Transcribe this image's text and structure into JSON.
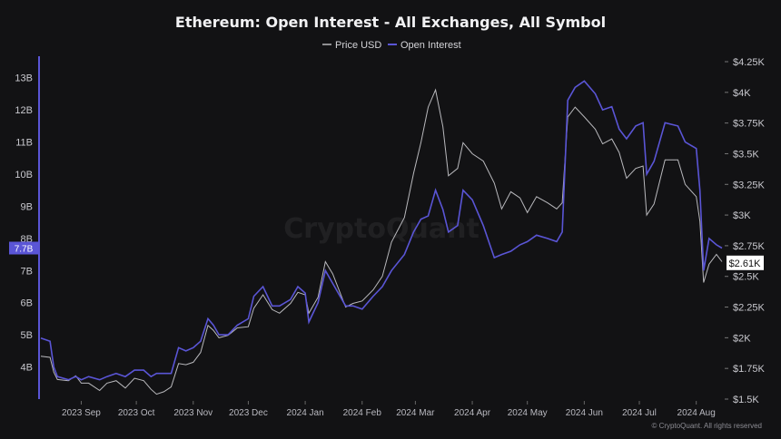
{
  "chart_data": {
    "type": "line",
    "title": "Ethereum: Open Interest - All Exchanges, All Symbol",
    "credit": "© CryptoQuant. All rights reserved",
    "watermark": "CryptoQuant",
    "legend_position": "top-center",
    "grid": false,
    "x_ticks": [
      {
        "label": "2023 Sep",
        "date": "2023-09-01"
      },
      {
        "label": "2023 Oct",
        "date": "2023-10-01"
      },
      {
        "label": "2023 Nov",
        "date": "2023-11-01"
      },
      {
        "label": "2023 Dec",
        "date": "2023-12-01"
      },
      {
        "label": "2024 Jan",
        "date": "2024-01-01"
      },
      {
        "label": "2024 Feb",
        "date": "2024-02-01"
      },
      {
        "label": "2024 Mar",
        "date": "2024-03-01"
      },
      {
        "label": "2024 Apr",
        "date": "2024-04-01"
      },
      {
        "label": "2024 May",
        "date": "2024-05-01"
      },
      {
        "label": "2024 Jun",
        "date": "2024-06-01"
      },
      {
        "label": "2024 Jul",
        "date": "2024-07-01"
      },
      {
        "label": "2024 Aug",
        "date": "2024-08-01"
      }
    ],
    "x_range": [
      "2023-08-10",
      "2024-08-16"
    ],
    "left_axis": {
      "ylim": [
        3.0,
        13.5
      ],
      "ticks": [
        {
          "value": 4,
          "label": "4B"
        },
        {
          "value": 5,
          "label": "5B"
        },
        {
          "value": 6,
          "label": "6B"
        },
        {
          "value": 7,
          "label": "7B"
        },
        {
          "value": 8,
          "label": "8B"
        },
        {
          "value": 9,
          "label": "9B"
        },
        {
          "value": 10,
          "label": "10B"
        },
        {
          "value": 11,
          "label": "11B"
        },
        {
          "value": 12,
          "label": "12B"
        },
        {
          "value": 13,
          "label": "13B"
        }
      ],
      "current_label": "7.7B",
      "current_value": 7.7,
      "badge_color": "#5a55d6"
    },
    "right_axis": {
      "ylim": [
        1500,
        4250
      ],
      "ticks": [
        {
          "value": 1500,
          "label": "$1.5K"
        },
        {
          "value": 1750,
          "label": "$1.75K"
        },
        {
          "value": 2000,
          "label": "$2K"
        },
        {
          "value": 2250,
          "label": "$2.25K"
        },
        {
          "value": 2500,
          "label": "$2.5K"
        },
        {
          "value": 2750,
          "label": "$2.75K"
        },
        {
          "value": 3000,
          "label": "$3K"
        },
        {
          "value": 3250,
          "label": "$3.25K"
        },
        {
          "value": 3500,
          "label": "$3.5K"
        },
        {
          "value": 3750,
          "label": "$3.75K"
        },
        {
          "value": 4000,
          "label": "$4K"
        },
        {
          "value": 4250,
          "label": "$4.25K"
        }
      ],
      "current_label": "$2.61K",
      "current_value": 2610
    },
    "series": [
      {
        "name": "Price USD",
        "axis": "right",
        "color": "#b9b9bd",
        "x": [
          "2023-08-10",
          "2023-08-15",
          "2023-08-17",
          "2023-08-19",
          "2023-08-25",
          "2023-08-29",
          "2023-09-01",
          "2023-09-05",
          "2023-09-11",
          "2023-09-15",
          "2023-09-20",
          "2023-09-25",
          "2023-09-30",
          "2023-10-05",
          "2023-10-09",
          "2023-10-12",
          "2023-10-16",
          "2023-10-20",
          "2023-10-24",
          "2023-10-28",
          "2023-11-01",
          "2023-11-05",
          "2023-11-09",
          "2023-11-12",
          "2023-11-15",
          "2023-11-20",
          "2023-11-25",
          "2023-12-01",
          "2023-12-04",
          "2023-12-09",
          "2023-12-14",
          "2023-12-18",
          "2023-12-24",
          "2023-12-28",
          "2024-01-01",
          "2024-01-03",
          "2024-01-08",
          "2024-01-12",
          "2024-01-16",
          "2024-01-23",
          "2024-01-27",
          "2024-02-01",
          "2024-02-07",
          "2024-02-12",
          "2024-02-17",
          "2024-02-24",
          "2024-02-29",
          "2024-03-04",
          "2024-03-08",
          "2024-03-12",
          "2024-03-16",
          "2024-03-19",
          "2024-03-24",
          "2024-03-27",
          "2024-04-01",
          "2024-04-07",
          "2024-04-13",
          "2024-04-17",
          "2024-04-22",
          "2024-04-27",
          "2024-05-01",
          "2024-05-06",
          "2024-05-12",
          "2024-05-17",
          "2024-05-20",
          "2024-05-23",
          "2024-05-27",
          "2024-06-01",
          "2024-06-07",
          "2024-06-11",
          "2024-06-16",
          "2024-06-20",
          "2024-06-24",
          "2024-06-29",
          "2024-07-03",
          "2024-07-05",
          "2024-07-09",
          "2024-07-15",
          "2024-07-22",
          "2024-07-26",
          "2024-08-01",
          "2024-08-03",
          "2024-08-05",
          "2024-08-08",
          "2024-08-12",
          "2024-08-15"
        ],
        "values": [
          1850,
          1840,
          1720,
          1660,
          1650,
          1690,
          1630,
          1630,
          1570,
          1630,
          1650,
          1590,
          1670,
          1650,
          1580,
          1540,
          1560,
          1600,
          1790,
          1780,
          1800,
          1880,
          2100,
          2060,
          2000,
          2020,
          2080,
          2090,
          2240,
          2350,
          2230,
          2200,
          2280,
          2370,
          2350,
          2200,
          2330,
          2620,
          2520,
          2250,
          2280,
          2300,
          2390,
          2500,
          2780,
          2980,
          3340,
          3590,
          3880,
          4020,
          3720,
          3320,
          3380,
          3590,
          3500,
          3440,
          3260,
          3050,
          3190,
          3140,
          3020,
          3150,
          3100,
          3050,
          3100,
          3800,
          3880,
          3800,
          3700,
          3580,
          3620,
          3510,
          3300,
          3380,
          3400,
          3000,
          3090,
          3450,
          3450,
          3250,
          3150,
          2950,
          2450,
          2600,
          2680,
          2620
        ]
      },
      {
        "name": "Open Interest",
        "axis": "left",
        "color": "#5a55d6",
        "x": [
          "2023-08-10",
          "2023-08-15",
          "2023-08-17",
          "2023-08-19",
          "2023-08-25",
          "2023-08-29",
          "2023-09-01",
          "2023-09-05",
          "2023-09-11",
          "2023-09-15",
          "2023-09-20",
          "2023-09-25",
          "2023-09-30",
          "2023-10-05",
          "2023-10-09",
          "2023-10-12",
          "2023-10-16",
          "2023-10-20",
          "2023-10-24",
          "2023-10-28",
          "2023-11-01",
          "2023-11-05",
          "2023-11-09",
          "2023-11-12",
          "2023-11-15",
          "2023-11-20",
          "2023-11-25",
          "2023-12-01",
          "2023-12-04",
          "2023-12-09",
          "2023-12-14",
          "2023-12-18",
          "2023-12-24",
          "2023-12-28",
          "2024-01-01",
          "2024-01-03",
          "2024-01-08",
          "2024-01-12",
          "2024-01-16",
          "2024-01-23",
          "2024-01-27",
          "2024-02-01",
          "2024-02-07",
          "2024-02-12",
          "2024-02-17",
          "2024-02-24",
          "2024-02-29",
          "2024-03-04",
          "2024-03-08",
          "2024-03-12",
          "2024-03-16",
          "2024-03-19",
          "2024-03-24",
          "2024-03-27",
          "2024-04-01",
          "2024-04-07",
          "2024-04-13",
          "2024-04-17",
          "2024-04-22",
          "2024-04-27",
          "2024-05-01",
          "2024-05-06",
          "2024-05-12",
          "2024-05-17",
          "2024-05-20",
          "2024-05-23",
          "2024-05-27",
          "2024-06-01",
          "2024-06-07",
          "2024-06-11",
          "2024-06-16",
          "2024-06-20",
          "2024-06-24",
          "2024-06-29",
          "2024-07-03",
          "2024-07-05",
          "2024-07-09",
          "2024-07-15",
          "2024-07-22",
          "2024-07-26",
          "2024-08-01",
          "2024-08-03",
          "2024-08-05",
          "2024-08-08",
          "2024-08-12",
          "2024-08-15"
        ],
        "values": [
          4.9,
          4.8,
          4.0,
          3.7,
          3.6,
          3.7,
          3.6,
          3.7,
          3.6,
          3.7,
          3.8,
          3.7,
          3.9,
          3.9,
          3.7,
          3.8,
          3.8,
          3.8,
          4.6,
          4.5,
          4.6,
          4.8,
          5.5,
          5.3,
          5.0,
          5.0,
          5.3,
          5.5,
          6.2,
          6.5,
          5.9,
          5.9,
          6.1,
          6.5,
          6.3,
          5.4,
          6.0,
          7.0,
          6.6,
          5.9,
          5.9,
          5.8,
          6.2,
          6.5,
          7.0,
          7.5,
          8.2,
          8.6,
          8.7,
          9.5,
          8.9,
          8.2,
          8.4,
          9.5,
          9.2,
          8.4,
          7.4,
          7.5,
          7.6,
          7.8,
          7.9,
          8.1,
          8.0,
          7.9,
          8.2,
          12.3,
          12.7,
          12.9,
          12.5,
          12.0,
          12.1,
          11.4,
          11.1,
          11.5,
          11.6,
          10.0,
          10.4,
          11.6,
          11.5,
          11.0,
          10.8,
          9.5,
          7.0,
          8.0,
          7.8,
          7.7
        ]
      }
    ]
  }
}
